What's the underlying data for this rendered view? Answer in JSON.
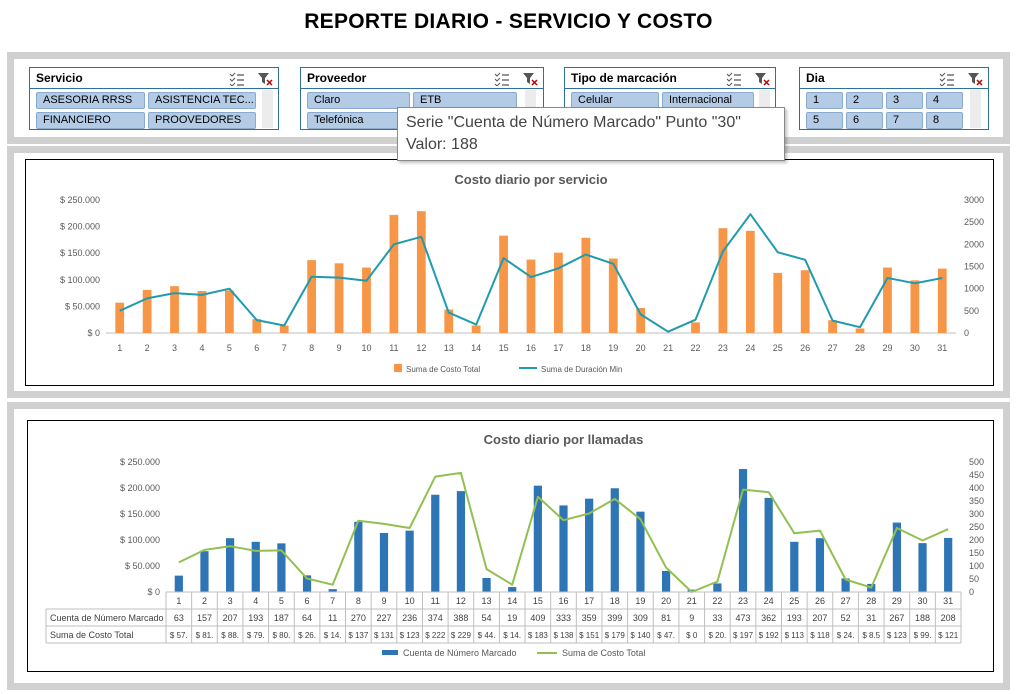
{
  "page": {
    "title": "REPORTE DIARIO - SERVICIO Y COSTO"
  },
  "slicers": [
    {
      "title": "Servicio",
      "items": [
        "ASESORIA RRSS",
        "ASISTENCIA TEC...",
        "FINANCIERO",
        "PROOVEDORES"
      ]
    },
    {
      "title": "Proveedor",
      "items": [
        "Claro",
        "ETB",
        "Telefónica"
      ]
    },
    {
      "title": "Tipo de marcación",
      "items": [
        "Celular",
        "Internacional"
      ]
    },
    {
      "title": "Dia",
      "items": [
        "1",
        "2",
        "3",
        "4",
        "5",
        "6",
        "7",
        "8"
      ]
    }
  ],
  "tooltip": {
    "line1": "Serie \"Cuenta de Número Marcado\" Punto \"30\"",
    "line2": "Valor: 188"
  },
  "chart_data": [
    {
      "type": "bar",
      "title": "Costo diario por servicio",
      "categories": [
        "1",
        "2",
        "3",
        "4",
        "5",
        "6",
        "7",
        "8",
        "9",
        "10",
        "11",
        "12",
        "13",
        "14",
        "15",
        "16",
        "17",
        "18",
        "19",
        "20",
        "21",
        "22",
        "23",
        "24",
        "25",
        "26",
        "27",
        "28",
        "29",
        "30",
        "31"
      ],
      "y_ticks": [
        "$ 0",
        "$ 50.000",
        "$ 100.000",
        "$ 150.000",
        "$ 200.000",
        "$ 250.000"
      ],
      "y2_ticks": [
        "0",
        "500",
        "1000",
        "1500",
        "2000",
        "2500",
        "3000"
      ],
      "ylim": [
        0,
        250000
      ],
      "y2lim": [
        0,
        3000
      ],
      "legend_position": "bottom",
      "series": [
        {
          "name": "Suma de Costo Total",
          "type": "bar",
          "axis": "left",
          "color": "#f79646",
          "values": [
            57000,
            81000,
            88000,
            79000,
            80000,
            26000,
            14000,
            137000,
            131000,
            123000,
            222000,
            229000,
            44000,
            14000,
            183000,
            138000,
            151000,
            179000,
            140000,
            47000,
            0,
            20000,
            197000,
            192000,
            113000,
            118000,
            24000,
            8500,
            123000,
            99000,
            121000
          ]
        },
        {
          "name": "Suma de Duración Min",
          "type": "line",
          "axis": "right",
          "color": "#1f9bb0",
          "values": [
            500,
            780,
            900,
            860,
            1000,
            290,
            170,
            1270,
            1250,
            1180,
            2000,
            2170,
            460,
            190,
            1690,
            1260,
            1460,
            1770,
            1560,
            420,
            30,
            300,
            1840,
            2680,
            1820,
            1650,
            280,
            130,
            1240,
            1120,
            1240
          ]
        }
      ]
    },
    {
      "type": "bar",
      "title": "Costo diario por llamadas",
      "categories": [
        "1",
        "2",
        "3",
        "4",
        "5",
        "6",
        "7",
        "8",
        "9",
        "10",
        "11",
        "12",
        "13",
        "14",
        "15",
        "16",
        "17",
        "18",
        "19",
        "20",
        "21",
        "22",
        "23",
        "24",
        "25",
        "26",
        "27",
        "28",
        "29",
        "30",
        "31"
      ],
      "y_ticks": [
        "$ 0",
        "$ 50.000",
        "$ 100.000",
        "$ 150.000",
        "$ 200.000",
        "$ 250.000"
      ],
      "y2_ticks": [
        "0",
        "50",
        "100",
        "150",
        "200",
        "250",
        "300",
        "350",
        "400",
        "450",
        "500"
      ],
      "ylim": [
        0,
        250000
      ],
      "y2lim": [
        0,
        500
      ],
      "legend_position": "bottom",
      "series": [
        {
          "name": "Cuenta de Número Marcado",
          "type": "bar",
          "axis": "right",
          "color": "#2e75b6",
          "values": [
            63,
            157,
            207,
            193,
            187,
            64,
            11,
            270,
            227,
            236,
            374,
            388,
            54,
            19,
            409,
            333,
            359,
            399,
            309,
            81,
            9,
            33,
            473,
            362,
            193,
            207,
            52,
            31,
            267,
            188,
            208
          ],
          "labels": [
            "63",
            "157",
            "207",
            "193",
            "187",
            "64",
            "11",
            "270",
            "227",
            "236",
            "374",
            "388",
            "54",
            "19",
            "409",
            "333",
            "359",
            "399",
            "309",
            "81",
            "9",
            "33",
            "473",
            "362",
            "193",
            "207",
            "52",
            "31",
            "267",
            "188",
            "208"
          ]
        },
        {
          "name": "Suma de Costo Total",
          "type": "line",
          "axis": "left",
          "color": "#92c050",
          "values": [
            57000,
            81000,
            88000,
            79000,
            80000,
            26000,
            14000,
            137000,
            131000,
            123000,
            222000,
            229000,
            44000,
            14000,
            183000,
            138000,
            151000,
            179000,
            140000,
            47000,
            0,
            20000,
            197000,
            192000,
            113000,
            118000,
            24000,
            8500,
            123000,
            99000,
            121000
          ],
          "labels": [
            "$ 57.",
            "$ 81.",
            "$ 88.",
            "$ 79.",
            "$ 80.",
            "$ 26.",
            "$ 14.",
            "$ 137",
            "$ 131",
            "$ 123",
            "$ 222",
            "$ 229",
            "$ 44.",
            "$ 14.",
            "$ 183",
            "$ 138",
            "$ 151",
            "$ 179",
            "$ 140",
            "$ 47.",
            "$ 0",
            "$ 20.",
            "$ 197",
            "$ 192",
            "$ 113",
            "$ 118",
            "$ 24.",
            "$ 8.5",
            "$ 123",
            "$ 99.",
            "$ 121"
          ]
        }
      ]
    }
  ]
}
